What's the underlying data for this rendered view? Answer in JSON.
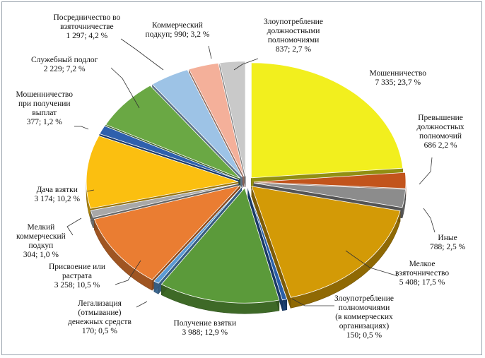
{
  "chart_data": {
    "type": "pie",
    "style": "3d exploded",
    "title": "",
    "unit": "count; %",
    "slices": [
      {
        "name": "Мошенничество",
        "value": 7335,
        "percent": 23.7,
        "color": "#f2ef1e",
        "label_lines": [
          "Мошенничество",
          "7 335; 23,7 %"
        ]
      },
      {
        "name": "Превышение должностных полномочий",
        "value": 686,
        "percent": 2.2,
        "color": "#c2541c",
        "label_lines": [
          "Превышение",
          "должностных",
          "полномочий",
          "686 2,2 %"
        ]
      },
      {
        "name": "Иные",
        "value": 788,
        "percent": 2.5,
        "color": "#8c8c8c",
        "label_lines": [
          "Иные",
          "788; 2,5 %"
        ]
      },
      {
        "name": "Мелкое взяточничество",
        "value": 5408,
        "percent": 17.5,
        "color": "#d39a06",
        "label_lines": [
          "Мелкое",
          "взяточничество",
          "5 408; 17,5 %"
        ]
      },
      {
        "name": "Злоупотребление полномочиями (в коммерческих организациях)",
        "value": 150,
        "percent": 0.5,
        "color": "#2a5fa8",
        "label_lines": [
          "Злоупотребление",
          "полномочиями",
          "(в коммерческих",
          "организациях)",
          "150; 0,5 %"
        ]
      },
      {
        "name": "Получение взятки",
        "value": 3988,
        "percent": 12.9,
        "color": "#5b9a3a",
        "label_lines": [
          "Получение взятки",
          "3 988; 12,9 %"
        ]
      },
      {
        "name": "Легализация (отмывание) денежных средств",
        "value": 170,
        "percent": 0.5,
        "color": "#5b9bd5",
        "label_lines": [
          "Легализация",
          "(отмывание)",
          "денежных средств",
          "170; 0,5 %"
        ]
      },
      {
        "name": "Присвоение или растрата",
        "value": 3258,
        "percent": 10.5,
        "color": "#ea7d32",
        "label_lines": [
          "Присвоение или",
          "растрата",
          "3 258; 10,5 %"
        ]
      },
      {
        "name": "Мелкий коммерческий подкуп",
        "value": 304,
        "percent": 1.0,
        "color": "#a8a8a8",
        "label_lines": [
          "Мелкий",
          "коммерческий",
          "подкуп",
          "304; 1,0 %"
        ]
      },
      {
        "name": "Дача взятки",
        "value": 3174,
        "percent": 10.2,
        "color": "#fbbf10",
        "label_lines": [
          "Дача взятки",
          "3 174; 10,2 %"
        ]
      },
      {
        "name": "Мошенничество при получении выплат",
        "value": 377,
        "percent": 1.2,
        "color": "#2e60ad",
        "label_lines": [
          "Мошенничество",
          "при получении",
          "выплат",
          "377; 1,2 %"
        ]
      },
      {
        "name": "Служебный подлог",
        "value": 2229,
        "percent": 7.2,
        "color": "#6aa844",
        "label_lines": [
          "Служебный подлог",
          "2 229; 7,2 %"
        ]
      },
      {
        "name": "Посредничество во взяточничестве",
        "value": 1297,
        "percent": 4.2,
        "color": "#9dc3e6",
        "label_lines": [
          "Посредничество во",
          "взяточничестве",
          "1 297; 4,2 %"
        ]
      },
      {
        "name": "Коммерческий подкуп",
        "value": 990,
        "percent": 3.2,
        "color": "#f4b09a",
        "label_lines": [
          "Коммерческий",
          "подкуп; 990; 3,2 %"
        ]
      },
      {
        "name": "Злоупотребление должностными полномочиями",
        "value": 837,
        "percent": 2.7,
        "color": "#c9c9c9",
        "label_lines": [
          "Злоупотребление",
          "должностными",
          "полномочиями",
          "837; 2,7 %"
        ]
      }
    ]
  }
}
